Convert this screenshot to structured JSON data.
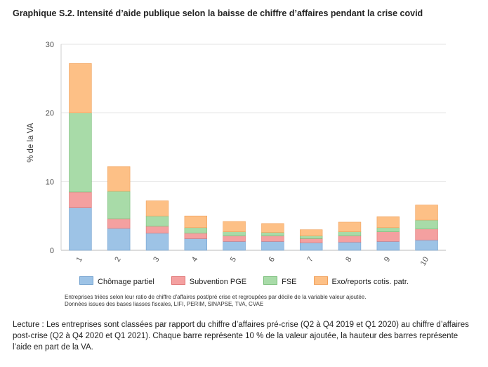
{
  "title": "Graphique S.2. Intensité d’aide publique selon la baisse de chiffre d’affaires pendant la crise covid",
  "note_lines": [
    "Entreprises triées selon leur ratio de chiffre d'affaires post/pré crise et regroupées par décile de la variable valeur ajoutée.",
    "Données issues des bases liasses fiscales, LIFI, PERIM, SINAPSE, TVA, CVAE"
  ],
  "reading": "Lecture : Les entreprises sont classées par rapport du chiffre d’affaires pré-crise (Q2 à Q4 2019 et Q1 2020) au chiffre d’affaires post-crise (Q2 à Q4 2020 et Q1 2021). Chaque barre représente 10 % de la valeur ajoutée, la hauteur des barres représente l’aide en part de la VA.",
  "chart_data": {
    "type": "bar",
    "stacked": true,
    "title": "",
    "xlabel": "",
    "ylabel": "% de la VA",
    "ylim": [
      0,
      30
    ],
    "yticks": [
      0,
      10,
      20,
      30
    ],
    "grid": true,
    "legend_position": "bottom",
    "categories": [
      "1",
      "2",
      "3",
      "4",
      "5",
      "6",
      "7",
      "8",
      "9",
      "10"
    ],
    "series": [
      {
        "name": "Chômage partiel",
        "color": "#9dc3e6",
        "border": "#6f9fce",
        "values": [
          6.2,
          3.2,
          2.5,
          1.7,
          1.3,
          1.3,
          1.1,
          1.2,
          1.3,
          1.5
        ]
      },
      {
        "name": "Subvention PGE",
        "color": "#f4a0a0",
        "border": "#e07070",
        "values": [
          2.3,
          1.4,
          1.0,
          0.8,
          0.8,
          0.8,
          0.6,
          0.9,
          1.4,
          1.6
        ]
      },
      {
        "name": "FSE",
        "color": "#a8dba8",
        "border": "#78bd78",
        "values": [
          11.5,
          4.0,
          1.5,
          0.8,
          0.6,
          0.5,
          0.4,
          0.6,
          0.6,
          1.3
        ]
      },
      {
        "name": "Exo/reports cotis. patr.",
        "color": "#fdc086",
        "border": "#f0a05a",
        "values": [
          7.2,
          3.6,
          2.2,
          1.7,
          1.5,
          1.3,
          0.9,
          1.4,
          1.6,
          2.2
        ]
      }
    ]
  }
}
